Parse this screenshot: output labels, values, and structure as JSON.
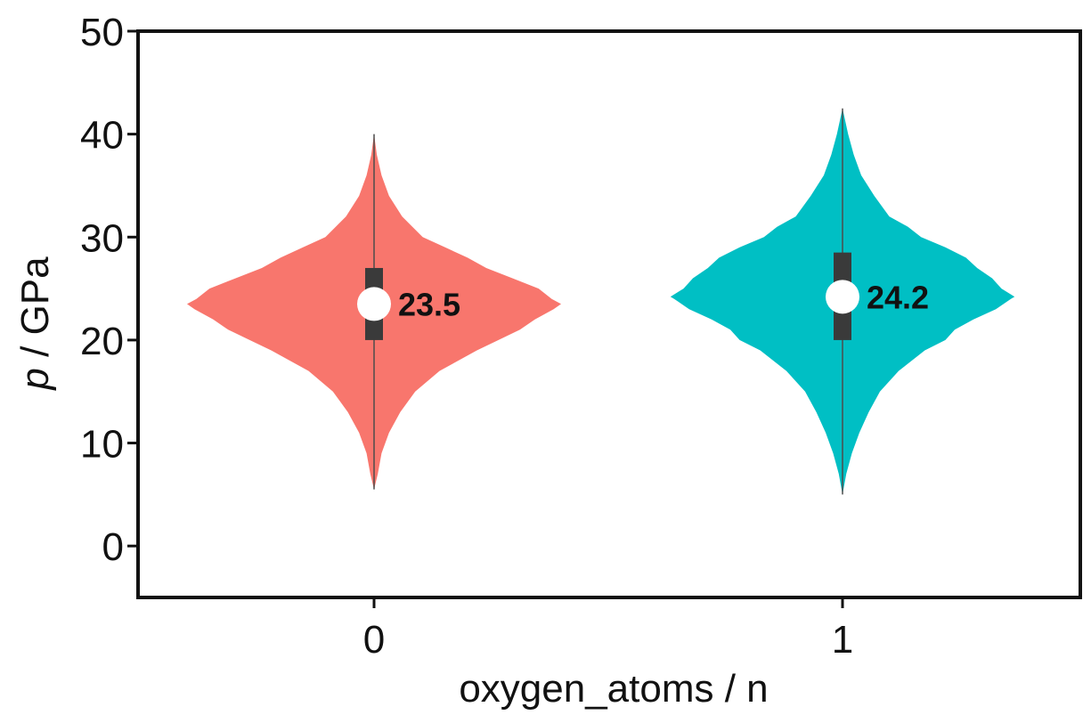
{
  "chart_data": {
    "type": "violin",
    "xlabel": "oxygen_atoms / n",
    "ylabel_italic": "p",
    "ylabel_rest": " / GPa",
    "ylim": [
      -5,
      50
    ],
    "yticks": [
      0,
      10,
      20,
      30,
      40,
      50
    ],
    "grid": false,
    "legend": "none",
    "categories": [
      "0",
      "1"
    ],
    "series": [
      {
        "category": "0",
        "color": "#f8766d",
        "median": 23.5,
        "median_label": "23.5",
        "q1": 20.0,
        "q3": 27.0,
        "min": 5.5,
        "max": 40.0,
        "density": [
          [
            5.5,
            0.0
          ],
          [
            7,
            0.02
          ],
          [
            9,
            0.04
          ],
          [
            11,
            0.08
          ],
          [
            13,
            0.14
          ],
          [
            15,
            0.22
          ],
          [
            17,
            0.35
          ],
          [
            19,
            0.55
          ],
          [
            21,
            0.78
          ],
          [
            22,
            0.86
          ],
          [
            23,
            0.96
          ],
          [
            23.5,
            1.0
          ],
          [
            24,
            0.95
          ],
          [
            25,
            0.88
          ],
          [
            26,
            0.74
          ],
          [
            27,
            0.6
          ],
          [
            28,
            0.5
          ],
          [
            29,
            0.38
          ],
          [
            30,
            0.26
          ],
          [
            32,
            0.15
          ],
          [
            34,
            0.08
          ],
          [
            36,
            0.04
          ],
          [
            38,
            0.015
          ],
          [
            40,
            0.0
          ]
        ]
      },
      {
        "category": "1",
        "color": "#00bfc4",
        "median": 24.2,
        "median_label": "24.2",
        "q1": 20.0,
        "q3": 28.5,
        "min": 5.0,
        "max": 42.5,
        "density": [
          [
            5.0,
            0.0
          ],
          [
            7,
            0.02
          ],
          [
            9,
            0.05
          ],
          [
            11,
            0.09
          ],
          [
            13,
            0.14
          ],
          [
            15,
            0.2
          ],
          [
            17,
            0.3
          ],
          [
            19,
            0.44
          ],
          [
            20,
            0.55
          ],
          [
            21,
            0.6
          ],
          [
            22,
            0.7
          ],
          [
            23,
            0.82
          ],
          [
            24,
            0.9
          ],
          [
            24.2,
            0.92
          ],
          [
            25,
            0.85
          ],
          [
            26,
            0.8
          ],
          [
            27,
            0.72
          ],
          [
            28,
            0.66
          ],
          [
            29,
            0.55
          ],
          [
            30,
            0.42
          ],
          [
            31,
            0.35
          ],
          [
            32,
            0.25
          ],
          [
            34,
            0.17
          ],
          [
            36,
            0.1
          ],
          [
            38,
            0.06
          ],
          [
            40,
            0.03
          ],
          [
            42.5,
            0.0
          ]
        ]
      }
    ]
  }
}
